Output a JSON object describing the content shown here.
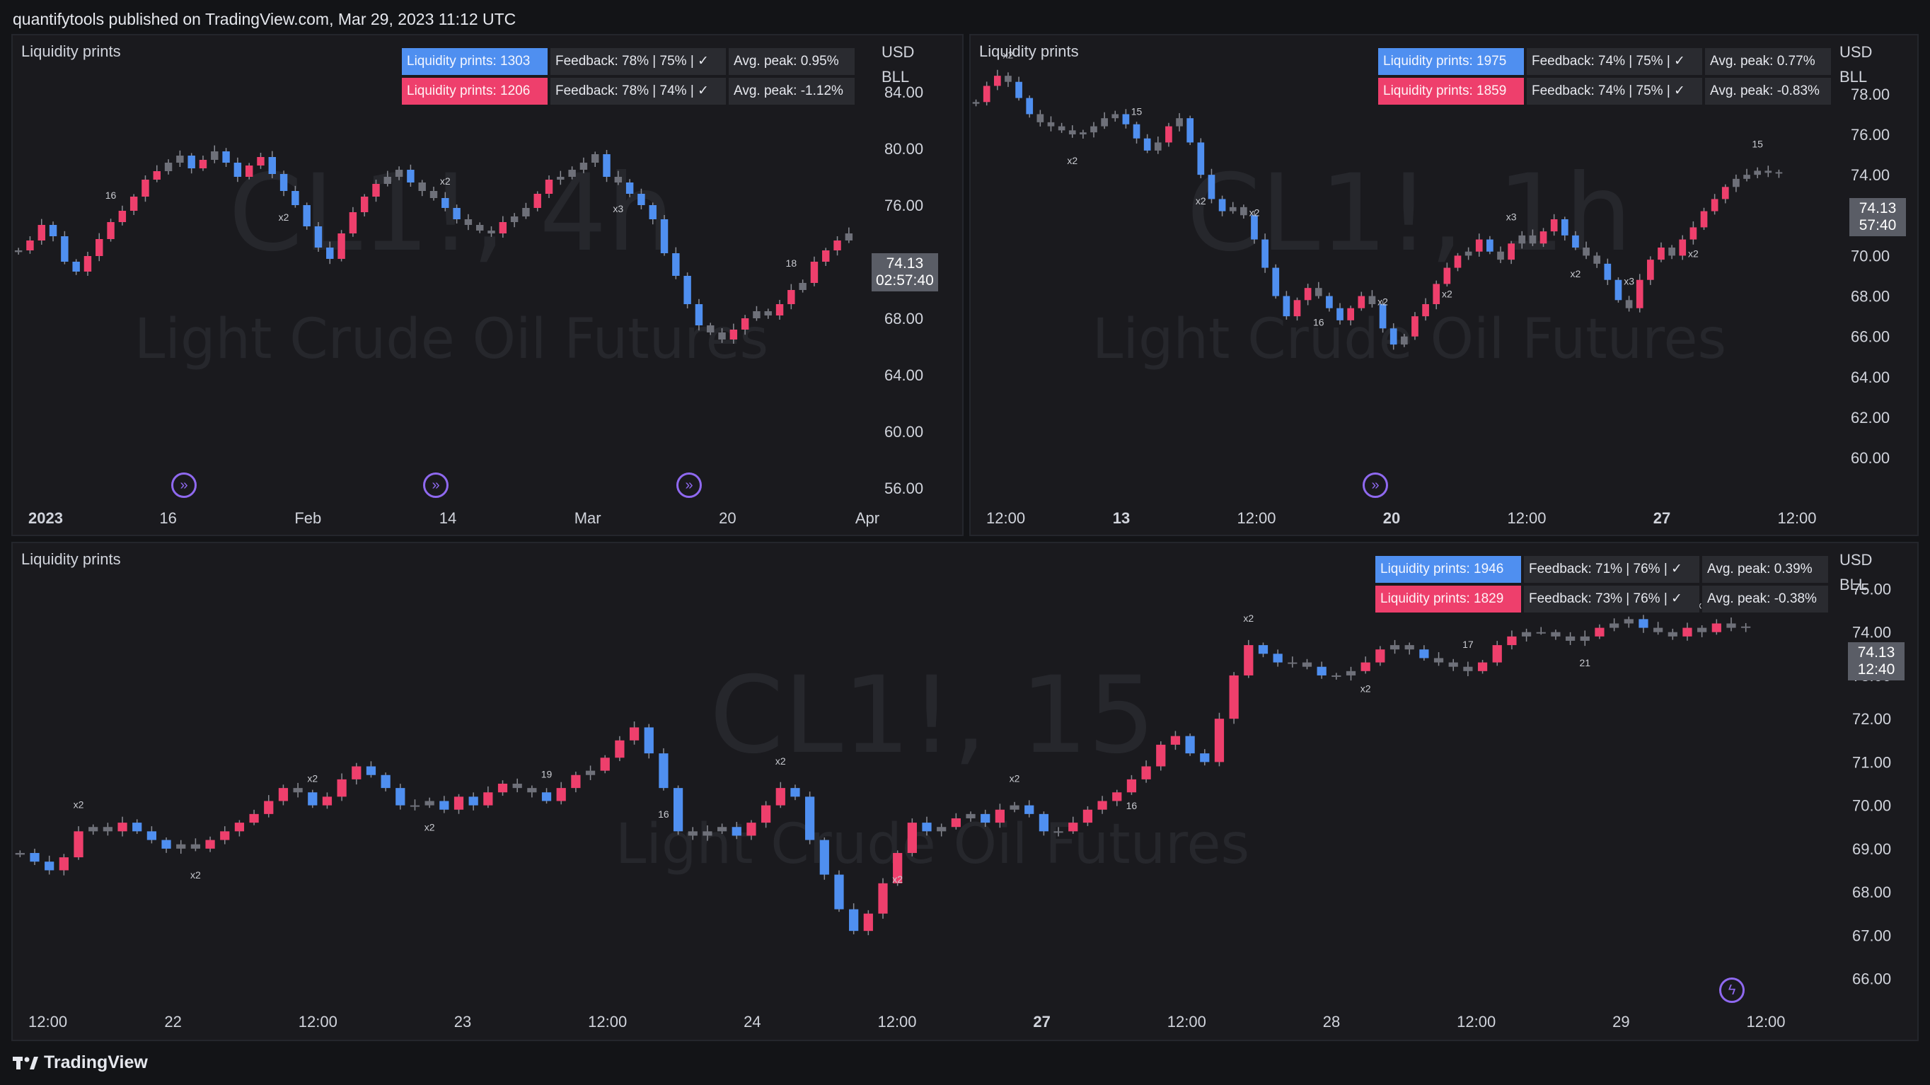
{
  "header": {
    "text": "quantifytools published on TradingView.com, Mar 29, 2023 11:12 UTC"
  },
  "footer": {
    "brand": "TradingView"
  },
  "colors": {
    "buy": "#4f8ff0",
    "sell": "#ee3f6c",
    "wick": "#8a8c94",
    "background": "#1a1a1e"
  },
  "panels": [
    {
      "id": "4h",
      "indicator": "Liquidity prints",
      "watermark": {
        "symbol": "CL1!, 4h",
        "description": "Light Crude Oil Futures"
      },
      "stats": {
        "buy_label": "Liquidity prints: 1303",
        "buy_feedback": "Feedback: 78% | 75% | ✓",
        "buy_peak": "Avg. peak: 0.95%",
        "sell_label": "Liquidity prints: 1206",
        "sell_feedback": "Feedback: 78% | 74% | ✓",
        "sell_peak": "Avg. peak: -1.12%"
      },
      "currency": "USD",
      "unit": "BLL",
      "last_price": "74.13",
      "countdown": "02:57:40",
      "y_ticks": [
        "84.00",
        "80.00",
        "76.00",
        "72.00",
        "68.00",
        "64.00",
        "60.00",
        "56.00"
      ],
      "x_ticks": [
        {
          "label": "2023",
          "bold": true
        },
        {
          "label": "16",
          "bold": false
        },
        {
          "label": "Feb",
          "bold": false
        },
        {
          "label": "14",
          "bold": false
        },
        {
          "label": "Mar",
          "bold": false
        },
        {
          "label": "20",
          "bold": false
        },
        {
          "label": "Apr",
          "bold": false
        }
      ],
      "event_icon": "arrow-circle-icon"
    },
    {
      "id": "1h",
      "indicator": "Liquidity prints",
      "watermark": {
        "symbol": "CL1!, 1h",
        "description": "Light Crude Oil Futures"
      },
      "stats": {
        "buy_label": "Liquidity prints: 1975",
        "buy_feedback": "Feedback: 74% | 75% | ✓",
        "buy_peak": "Avg. peak: 0.77%",
        "sell_label": "Liquidity prints: 1859",
        "sell_feedback": "Feedback: 74% | 75% | ✓",
        "sell_peak": "Avg. peak: -0.83%"
      },
      "currency": "USD",
      "unit": "BLL",
      "last_price": "74.13",
      "countdown": "57:40",
      "y_ticks": [
        "78.00",
        "76.00",
        "74.00",
        "72.00",
        "70.00",
        "68.00",
        "66.00",
        "64.00",
        "62.00",
        "60.00"
      ],
      "x_ticks": [
        {
          "label": "12:00",
          "bold": false
        },
        {
          "label": "13",
          "bold": true
        },
        {
          "label": "12:00",
          "bold": false
        },
        {
          "label": "20",
          "bold": true
        },
        {
          "label": "12:00",
          "bold": false
        },
        {
          "label": "27",
          "bold": true
        },
        {
          "label": "12:00",
          "bold": false
        }
      ],
      "event_icon": "arrow-circle-icon"
    },
    {
      "id": "15",
      "indicator": "Liquidity prints",
      "watermark": {
        "symbol": "CL1!, 15",
        "description": "Light Crude Oil Futures"
      },
      "stats": {
        "buy_label": "Liquidity prints: 1946",
        "buy_feedback": "Feedback: 71% | 76% | ✓",
        "buy_peak": "Avg. peak: 0.39%",
        "sell_label": "Liquidity prints: 1829",
        "sell_feedback": "Feedback: 73% | 76% | ✓",
        "sell_peak": "Avg. peak: -0.38%"
      },
      "currency": "USD",
      "unit": "BLL",
      "last_price": "74.13",
      "countdown": "12:40",
      "y_ticks": [
        "75.00",
        "74.00",
        "73.00",
        "72.00",
        "71.00",
        "70.00",
        "69.00",
        "68.00",
        "67.00",
        "66.00"
      ],
      "x_ticks": [
        {
          "label": "12:00",
          "bold": false
        },
        {
          "label": "22",
          "bold": false
        },
        {
          "label": "12:00",
          "bold": false
        },
        {
          "label": "23",
          "bold": false
        },
        {
          "label": "12:00",
          "bold": false
        },
        {
          "label": "24",
          "bold": false
        },
        {
          "label": "12:00",
          "bold": false
        },
        {
          "label": "27",
          "bold": true
        },
        {
          "label": "12:00",
          "bold": false
        },
        {
          "label": "28",
          "bold": false
        },
        {
          "label": "12:00",
          "bold": false
        },
        {
          "label": "29",
          "bold": false
        },
        {
          "label": "12:00",
          "bold": false
        }
      ],
      "event_icon": "lightning-circle-icon"
    }
  ],
  "chart_data": [
    {
      "type": "candlestick",
      "panel": "4h",
      "ylim": [
        56,
        86
      ],
      "series": [
        {
          "values": [
            72.8,
            73.5,
            74.6,
            73.8,
            72.0,
            71.3,
            72.4,
            73.6,
            74.8,
            75.6,
            76.6,
            77.8,
            78.4,
            79.0,
            79.5,
            78.6,
            79.2,
            79.8,
            79.0,
            78.0,
            78.8,
            79.4,
            78.2,
            77.0,
            76.0,
            74.5,
            73.0,
            72.2,
            74.0,
            75.5,
            76.6,
            77.5,
            78.0,
            78.5,
            77.6,
            77.0,
            76.5,
            75.8,
            75.0,
            74.6,
            74.2,
            74.0,
            74.8,
            75.2,
            75.8,
            76.8,
            77.8,
            78.0,
            78.5,
            79.0,
            79.6,
            78.0,
            77.6,
            76.8,
            76.0,
            75.0,
            72.6,
            71.0,
            69.0,
            67.5,
            67.0,
            66.5,
            67.2,
            68.0,
            68.5,
            68.2,
            69.0,
            70.0,
            70.5,
            72.0,
            72.8,
            73.5,
            74.0
          ]
        }
      ],
      "annotations": [
        "16",
        "x2",
        "x2",
        "x3",
        "18"
      ]
    },
    {
      "type": "candlestick",
      "panel": "1h",
      "ylim": [
        58.5,
        79.5
      ],
      "series": [
        {
          "values": [
            77.6,
            78.4,
            78.9,
            78.6,
            77.8,
            77.0,
            76.6,
            76.4,
            76.2,
            76.0,
            76.1,
            76.4,
            76.8,
            77.0,
            76.5,
            75.8,
            75.2,
            75.6,
            76.4,
            76.8,
            75.6,
            74.0,
            72.8,
            72.2,
            72.4,
            72.0,
            70.8,
            69.4,
            68.0,
            67.0,
            67.8,
            68.4,
            68.0,
            67.4,
            66.8,
            67.4,
            68.0,
            67.6,
            66.4,
            65.6,
            66.0,
            67.0,
            67.6,
            68.6,
            69.4,
            70.0,
            70.2,
            70.8,
            70.2,
            69.8,
            70.6,
            71.0,
            70.6,
            71.2,
            71.8,
            71.0,
            70.4,
            70.0,
            69.6,
            68.8,
            67.8,
            67.4,
            68.8,
            69.8,
            70.4,
            70.0,
            70.8,
            71.4,
            72.2,
            72.8,
            73.4,
            73.8,
            74.0,
            74.2,
            74.1,
            74.13
          ]
        }
      ],
      "annotations": [
        "x2",
        "x2",
        "15",
        "x2",
        "x2",
        "16",
        "x2",
        "x2",
        "x3",
        "x2",
        "x3",
        "x2",
        "15"
      ]
    },
    {
      "type": "candlestick",
      "panel": "15",
      "ylim": [
        65.6,
        75.4
      ],
      "series": [
        {
          "values": [
            68.9,
            68.7,
            68.5,
            68.8,
            69.4,
            69.5,
            69.4,
            69.6,
            69.4,
            69.2,
            69.0,
            69.1,
            69.0,
            69.2,
            69.4,
            69.6,
            69.8,
            70.1,
            70.4,
            70.3,
            70.0,
            70.2,
            70.6,
            70.9,
            70.7,
            70.4,
            70.0,
            70.0,
            70.1,
            69.9,
            70.2,
            70.0,
            70.3,
            70.5,
            70.4,
            70.3,
            70.1,
            70.4,
            70.7,
            70.8,
            71.1,
            71.5,
            71.8,
            71.2,
            70.4,
            69.4,
            69.3,
            69.4,
            69.5,
            69.3,
            69.6,
            70.0,
            70.4,
            70.2,
            69.2,
            68.4,
            67.6,
            67.1,
            67.5,
            68.2,
            68.9,
            69.6,
            69.4,
            69.5,
            69.7,
            69.8,
            69.6,
            69.9,
            70.0,
            69.8,
            69.4,
            69.4,
            69.6,
            69.9,
            70.1,
            70.3,
            70.6,
            70.9,
            71.4,
            71.6,
            71.2,
            71.0,
            72.0,
            73.0,
            73.7,
            73.5,
            73.3,
            73.3,
            73.2,
            73.0,
            73.0,
            73.1,
            73.3,
            73.6,
            73.7,
            73.6,
            73.4,
            73.3,
            73.2,
            73.1,
            73.3,
            73.7,
            73.9,
            74.0,
            74.0,
            73.9,
            73.8,
            73.9,
            74.1,
            74.2,
            74.3,
            74.1,
            74.0,
            73.9,
            74.1,
            74.0,
            74.2,
            74.1,
            74.13
          ]
        }
      ],
      "annotations": [
        "x2",
        "x2",
        "x2",
        "x2",
        "19",
        "16",
        "x2",
        "x2",
        "x2",
        "16",
        "x2",
        "x2",
        "17",
        "21",
        "x2"
      ]
    }
  ]
}
